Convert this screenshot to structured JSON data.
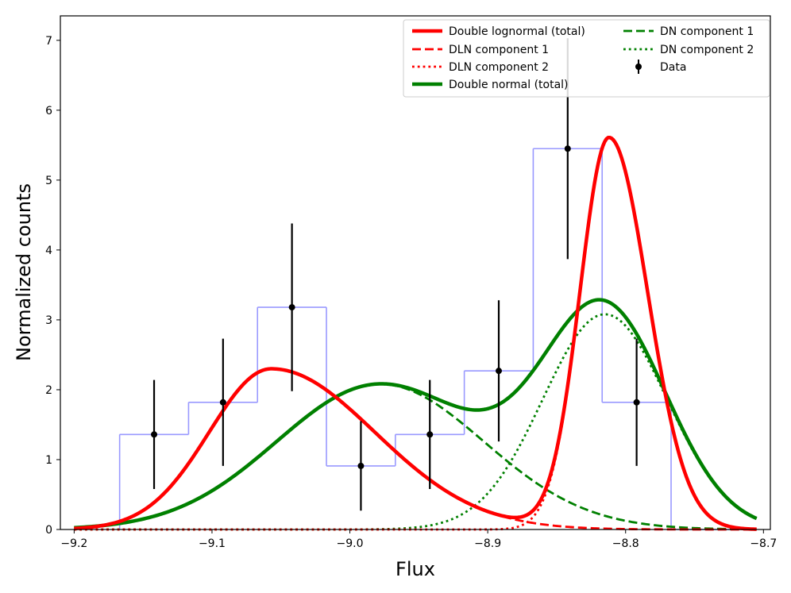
{
  "chart_data": {
    "type": "line",
    "title": "",
    "xlabel": "Flux",
    "ylabel": "Normalized counts",
    "xlim": [
      -9.21,
      -8.695
    ],
    "ylim": [
      0,
      7.35
    ],
    "xticks": [
      -9.2,
      -9.1,
      -9.0,
      -8.9,
      -8.8,
      -8.7
    ],
    "xtick_labels": [
      "−9.2",
      "−9.1",
      "−9.0",
      "−8.9",
      "−8.8",
      "−8.7"
    ],
    "yticks": [
      0,
      1,
      2,
      3,
      4,
      5,
      6,
      7
    ],
    "ytick_labels": [
      "0",
      "1",
      "2",
      "3",
      "4",
      "5",
      "6",
      "7"
    ],
    "grid": false,
    "legend_position": "top-right",
    "histogram": {
      "color": "#9999ff",
      "edges": [
        -9.167,
        -9.117,
        -9.067,
        -9.017,
        -8.967,
        -8.917,
        -8.867,
        -8.817,
        -8.767,
        -8.717
      ],
      "values": [
        1.36,
        1.82,
        3.18,
        0.91,
        1.36,
        2.27,
        5.45,
        1.82,
        0
      ]
    },
    "data_points": {
      "name": "Data",
      "color": "#000000",
      "x": [
        -9.142,
        -9.092,
        -9.042,
        -8.992,
        -8.942,
        -8.892,
        -8.842,
        -8.792
      ],
      "y": [
        1.36,
        1.82,
        3.18,
        0.91,
        1.36,
        2.27,
        5.45,
        1.82
      ],
      "yerr": [
        0.78,
        0.91,
        1.2,
        0.64,
        0.78,
        1.01,
        1.58,
        0.91
      ]
    },
    "series": [
      {
        "name": "Double lognormal (total)",
        "color": "#ff0000",
        "dash": "solid",
        "width": 4.5,
        "kind": "dln_total"
      },
      {
        "name": "DLN component 1",
        "color": "#ff0000",
        "dash": "dashed",
        "width": 2.8,
        "kind": "dln1"
      },
      {
        "name": "DLN component 2",
        "color": "#ff0000",
        "dash": "dotted",
        "width": 2.8,
        "kind": "dln2"
      },
      {
        "name": "Double normal (total)",
        "color": "#008000",
        "dash": "solid",
        "width": 4.5,
        "kind": "dn_total"
      },
      {
        "name": "DN component 1",
        "color": "#008000",
        "dash": "dashed",
        "width": 2.8,
        "kind": "dn1"
      },
      {
        "name": "DN component 2",
        "color": "#008000",
        "dash": "dotted",
        "width": 2.8,
        "kind": "dn2"
      }
    ],
    "components": {
      "dln1": {
        "amp": 2.3,
        "mu": -9.057,
        "sigma_left": 0.045,
        "sigma_right": 0.075
      },
      "dln2": {
        "amp": 5.6,
        "mu": -8.812,
        "sigma_left": 0.021,
        "sigma_right": 0.028
      },
      "dn1": {
        "amp": 2.08,
        "mu": -8.978,
        "sigma": 0.075
      },
      "dn2": {
        "amp": 3.08,
        "mu": -8.815,
        "sigma": 0.045
      },
      "x_start": -9.2,
      "x_end": -8.705
    }
  }
}
